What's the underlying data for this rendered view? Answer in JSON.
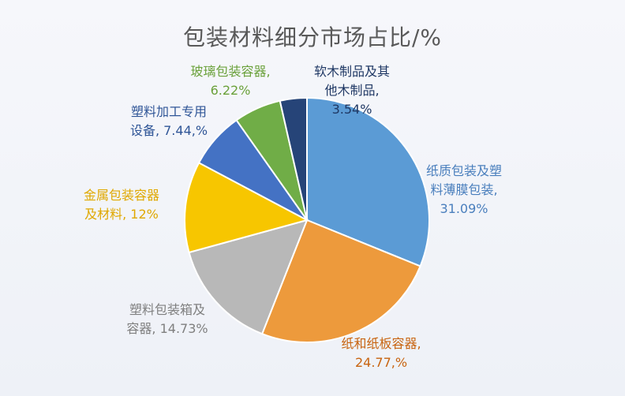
{
  "chart_data": {
    "type": "pie",
    "title": "包装材料细分市场占比/%",
    "start_angle_deg": 0,
    "direction": "clockwise",
    "slices": [
      {
        "label_lines": [
          "纸质包装及塑",
          "料薄膜包装,",
          "31.09%"
        ],
        "value": 31.09,
        "color": "#5b9bd5",
        "label_color": "#4a7fbd"
      },
      {
        "label_lines": [
          "纸和纸板容器,",
          "24.77,%"
        ],
        "value": 24.77,
        "color": "#ed9a3c",
        "label_color": "#c86410"
      },
      {
        "label_lines": [
          "塑料包装箱及",
          "容器, 14.73%"
        ],
        "value": 14.73,
        "color": "#b8b8b8",
        "label_color": "#7f7f7f"
      },
      {
        "label_lines": [
          "金属包装容器",
          "及材料, 12%"
        ],
        "value": 12,
        "color": "#f7c600",
        "label_color": "#e0a800"
      },
      {
        "label_lines": [
          "塑料加工专用",
          "设备, 7.44,%"
        ],
        "value": 7.44,
        "color": "#4472c4",
        "label_color": "#2f5597"
      },
      {
        "label_lines": [
          "玻璃包装容器,",
          "6.22%"
        ],
        "value": 6.22,
        "color": "#70ad47",
        "label_color": "#6aa13a"
      },
      {
        "label_lines": [
          "软木制品及其",
          "他木制品,",
          "3.54%"
        ],
        "value": 3.54,
        "color": "#264478",
        "label_color": "#1f3864"
      }
    ]
  }
}
